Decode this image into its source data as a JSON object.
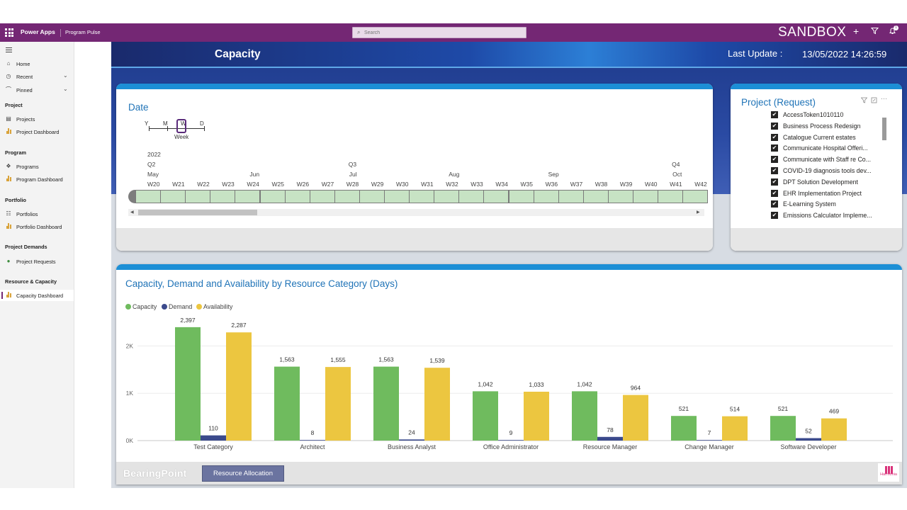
{
  "topbar": {
    "app_name": "Power Apps",
    "app_title": "Program Pulse",
    "search_placeholder": "Search",
    "environment": "SANDBOX",
    "notification_count": "1",
    "color": "#742774"
  },
  "sidebar": {
    "items": [
      {
        "label": "Home",
        "icon": "home-icon"
      },
      {
        "label": "Recent",
        "icon": "clock-icon"
      },
      {
        "label": "Pinned",
        "icon": "pin-icon"
      }
    ],
    "groups": [
      {
        "title": "Project",
        "items": [
          {
            "label": "Projects"
          },
          {
            "label": "Project Dashboard"
          }
        ]
      },
      {
        "title": "Program",
        "items": [
          {
            "label": "Programs"
          },
          {
            "label": "Program Dashboard"
          }
        ]
      },
      {
        "title": "Portfolio",
        "items": [
          {
            "label": "Portfolios"
          },
          {
            "label": "Portfolio Dashboard"
          }
        ]
      },
      {
        "title": "Project Demands",
        "items": [
          {
            "label": "Project Requests"
          }
        ]
      },
      {
        "title": "Resource & Capacity",
        "items": [
          {
            "label": "Capacity Dashboard"
          }
        ]
      }
    ],
    "active": "Capacity Dashboard"
  },
  "header": {
    "title": "Capacity",
    "last_update_label": "Last Update :",
    "last_update_value": "13/05/2022 14:26:59"
  },
  "date_slicer": {
    "title": "Date",
    "granularity": [
      "Y",
      "M",
      "W",
      "D"
    ],
    "selected_granularity": "W",
    "selected_label": "Week",
    "year": "2022",
    "quarters": [
      "Q2",
      "Q3",
      "Q4"
    ],
    "months": [
      "May",
      "Jun",
      "Jul",
      "Aug",
      "Sep",
      "Oct"
    ],
    "weeks": [
      "W20",
      "W21",
      "W22",
      "W23",
      "W24",
      "W25",
      "W26",
      "W27",
      "W28",
      "W29",
      "W30",
      "W31",
      "W32",
      "W33",
      "W34",
      "W35",
      "W36",
      "W37",
      "W38",
      "W39",
      "W40",
      "W41",
      "W42"
    ]
  },
  "project_filter": {
    "title": "Project (Request)",
    "items": [
      "AccessToken1010110",
      "Business Process Redesign",
      "Catalogue Current estates",
      "Communicate Hospital Offeri...",
      "Communicate with Staff re Co...",
      "COVID-19 diagnosis tools dev...",
      "DPT Solution Development",
      "EHR Implementation Project",
      "E-Learning System",
      "Emissions Calculator Impleme..."
    ]
  },
  "chart_data": {
    "type": "bar",
    "title": "Capacity, Demand and Availability by Resource Category (Days)",
    "categories": [
      "Test Category",
      "Architect",
      "Business Analyst",
      "Office Administrator",
      "Resource Manager",
      "Change Manager",
      "Software Developer"
    ],
    "series": [
      {
        "name": "Capacity",
        "color": "#6fbb5e",
        "values": [
          2397,
          1563,
          1563,
          1042,
          1042,
          521,
          521
        ],
        "labels": [
          "2,397",
          "1,563",
          "1,563",
          "1,042",
          "1,042",
          "521",
          "521"
        ]
      },
      {
        "name": "Demand",
        "color": "#3b4a8c",
        "values": [
          110,
          8,
          24,
          9,
          78,
          7,
          52
        ],
        "labels": [
          "110",
          "8",
          "24",
          "9",
          "78",
          "7",
          "52"
        ]
      },
      {
        "name": "Availability",
        "color": "#ecc640",
        "values": [
          2287,
          1555,
          1539,
          1033,
          964,
          514,
          469
        ],
        "labels": [
          "2,287",
          "1,555",
          "1,539",
          "1,033",
          "964",
          "514",
          "469"
        ]
      }
    ],
    "yticks": [
      "0K",
      "1K",
      "2K"
    ],
    "ylim": [
      0,
      2500
    ],
    "legend": "top-left",
    "grid": true
  },
  "footer": {
    "logo": "BearingPoint",
    "button_label": "Resource Allocation",
    "brand": "Harmonia"
  }
}
